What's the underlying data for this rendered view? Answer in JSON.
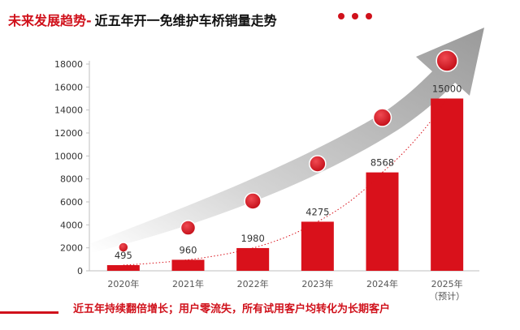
{
  "header": {
    "title_main": "未来发展趋势-",
    "title_sub": "近五年开一免维护车桥销量走势"
  },
  "footer": {
    "text": "近五年持续翻倍增长；用户零流失，所有试用客户均转化为长期客户"
  },
  "colors": {
    "accent": "#d0111b",
    "bar": "#d9111b",
    "arrow": "#9a9a9a"
  },
  "chart_data": {
    "type": "bar",
    "title": "近五年开一免维护车桥销量走势",
    "categories": [
      "2020年",
      "2021年",
      "2022年",
      "2023年",
      "2024年",
      "2025年"
    ],
    "category_notes": [
      "",
      "",
      "",
      "",
      "",
      "（预计）"
    ],
    "values": [
      495,
      960,
      1980,
      4275,
      8568,
      15000
    ],
    "value_labels": [
      "495",
      "960",
      "1980",
      "4275",
      "8568",
      "15000"
    ],
    "yticks": [
      0,
      2000,
      4000,
      6000,
      8000,
      10000,
      12000,
      14000,
      16000,
      18000
    ],
    "ylim": [
      0,
      18000
    ],
    "grid": false,
    "legend": "none",
    "trend_line": "dotted-exponential",
    "decoration": "grey upward arrow with red circle markers"
  }
}
